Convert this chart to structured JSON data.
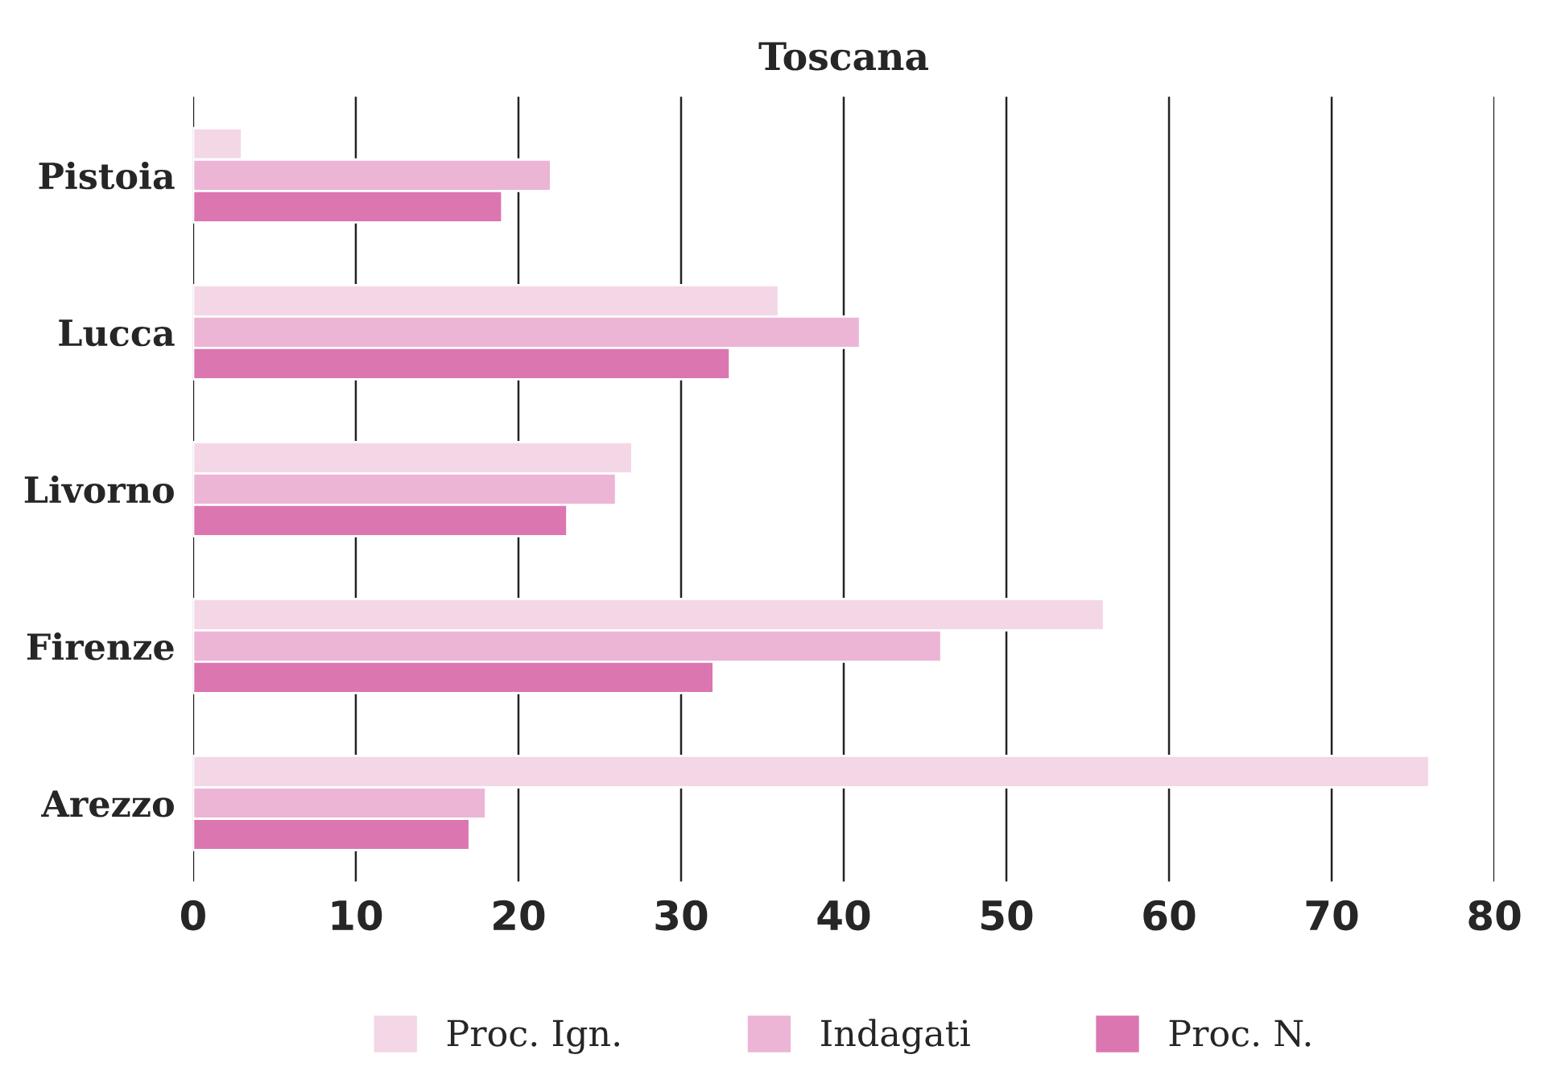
{
  "chart_data": {
    "type": "bar",
    "orientation": "horizontal",
    "title": "Toscana",
    "categories": [
      "Pistoia",
      "Lucca",
      "Livorno",
      "Firenze",
      "Arezzo"
    ],
    "series": [
      {
        "name": "Proc. Ign.",
        "color": "#f3d7e6",
        "values": [
          3,
          36,
          27,
          56,
          76
        ]
      },
      {
        "name": "Indagati",
        "color": "#ecb5d5",
        "values": [
          22,
          41,
          26,
          46,
          18
        ]
      },
      {
        "name": "Proc. N.",
        "color": "#dc76b0",
        "values": [
          19,
          33,
          23,
          32,
          17
        ]
      }
    ],
    "xlim": [
      0,
      80
    ],
    "xticks": [
      0,
      10,
      20,
      30,
      40,
      50,
      60,
      70,
      80
    ],
    "grid": "x",
    "legend": "bottom"
  }
}
